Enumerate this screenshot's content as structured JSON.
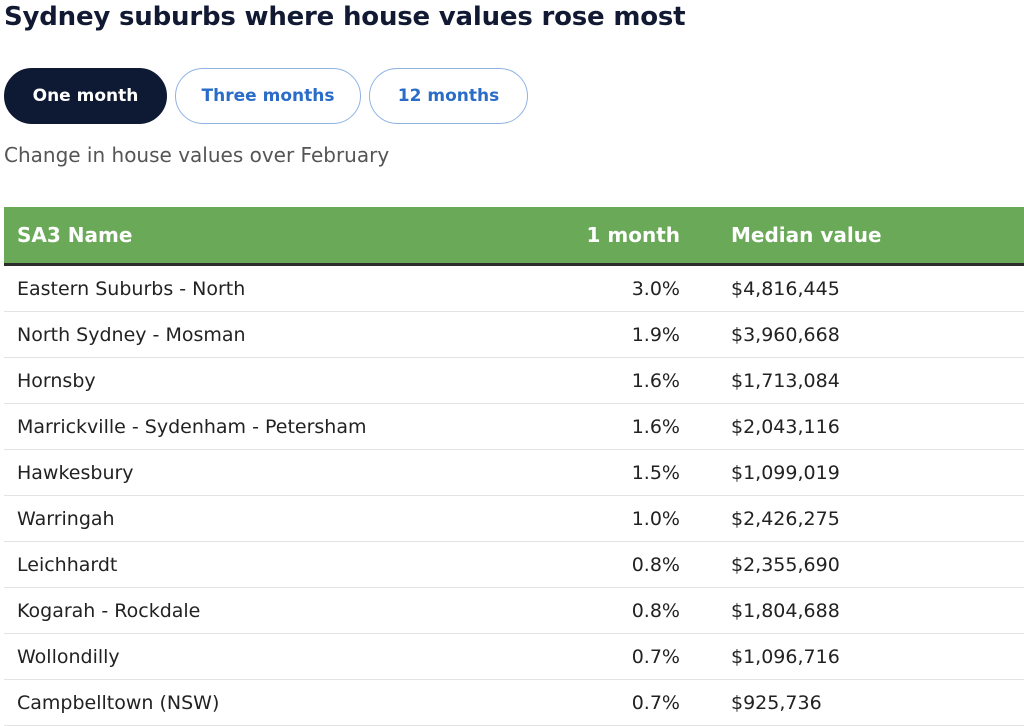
{
  "title": "Sydney suburbs where house values rose most",
  "tabs": [
    {
      "label": "One month",
      "active": true
    },
    {
      "label": "Three months",
      "active": false
    },
    {
      "label": "12 months",
      "active": false
    }
  ],
  "subtitle": "Change in house values over February",
  "table": {
    "headers": [
      "SA3 Name",
      "1 month",
      "Median value"
    ],
    "rows": [
      {
        "name": "Eastern Suburbs - North",
        "change": "3.0%",
        "median": "$4,816,445"
      },
      {
        "name": "North Sydney - Mosman",
        "change": "1.9%",
        "median": "$3,960,668"
      },
      {
        "name": "Hornsby",
        "change": "1.6%",
        "median": "$1,713,084"
      },
      {
        "name": "Marrickville - Sydenham - Petersham",
        "change": "1.6%",
        "median": "$2,043,116"
      },
      {
        "name": "Hawkesbury",
        "change": "1.5%",
        "median": "$1,099,019"
      },
      {
        "name": "Warringah",
        "change": "1.0%",
        "median": "$2,426,275"
      },
      {
        "name": "Leichhardt",
        "change": "0.8%",
        "median": "$2,355,690"
      },
      {
        "name": "Kogarah - Rockdale",
        "change": "0.8%",
        "median": "$1,804,688"
      },
      {
        "name": "Wollondilly",
        "change": "0.7%",
        "median": "$1,096,716"
      },
      {
        "name": "Campbelltown (NSW)",
        "change": "0.7%",
        "median": "$925,736"
      }
    ]
  },
  "colors": {
    "header_bg": "#69a957",
    "active_tab_bg": "#0e1a33",
    "inactive_tab_text": "#2a6cc7",
    "title": "#121a33"
  }
}
